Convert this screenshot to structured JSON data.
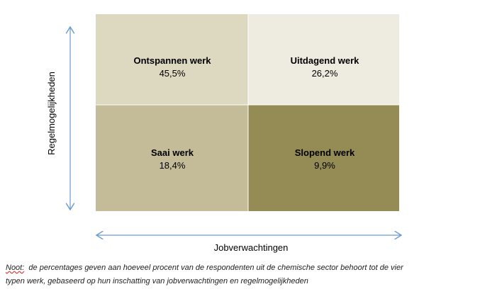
{
  "quadrants": [
    {
      "label": "Ontspannen werk",
      "value": "45,5%"
    },
    {
      "label": "Uitdagend werk",
      "value": "26,2%"
    },
    {
      "label": "Saai werk",
      "value": "18,4%"
    },
    {
      "label": "Slopend werk",
      "value": "9,9%"
    }
  ],
  "y_axis_label": "Regelmogelijkheden",
  "x_axis_label": "Jobverwachtingen",
  "note": {
    "label": "Noot:",
    "lines": [
      "de percentages geven aan hoeveel procent van de respondenten uit de chemische sector behoort tot de vier",
      "typen werk, gebaseerd op hun inschatting van jobverwachtingen en regelmogelijkheden"
    ]
  }
}
